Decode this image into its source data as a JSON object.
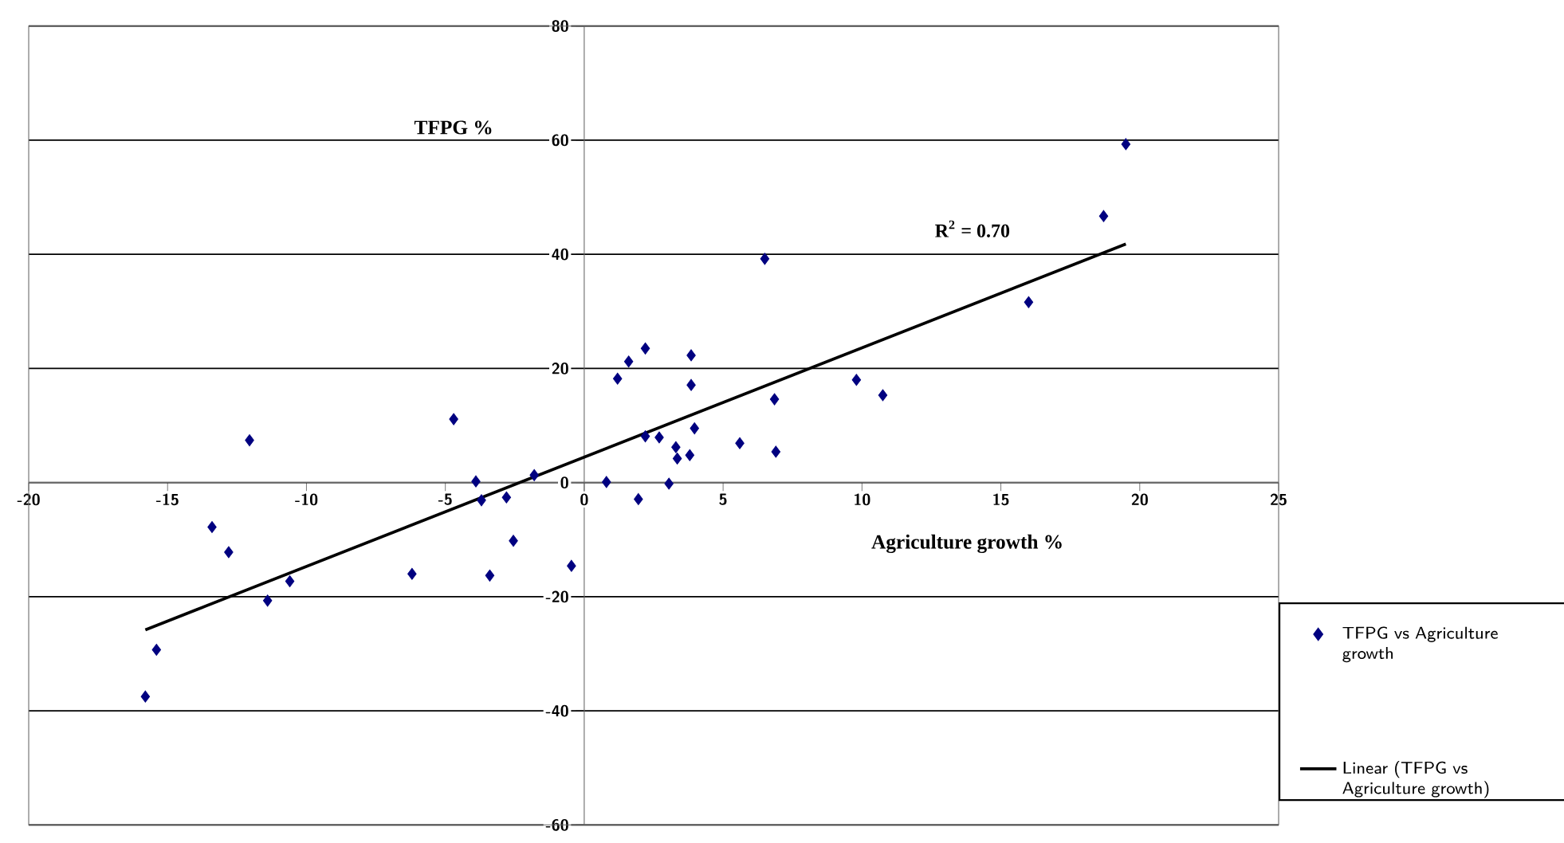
{
  "chart_data": {
    "type": "scatter",
    "xlabel": "Agriculture growth %",
    "ylabel": "TFPG %",
    "xlim": [
      -20,
      25
    ],
    "xticks": [
      -20,
      -15,
      -10,
      -5,
      0,
      5,
      10,
      15,
      20,
      25
    ],
    "ylim": [
      -60,
      80
    ],
    "yticks": [
      -60,
      -40,
      -20,
      0,
      20,
      40,
      60,
      80
    ],
    "grid": "y",
    "legend": "right",
    "annotations": [
      "R$^{2}$ = 0.70"
    ],
    "series": [
      {
        "name": "TFPG vs Agriculture growth",
        "marker": "diamond",
        "color": "#000080",
        "x": [
          -15.8,
          -15.4,
          -13.4,
          -12.8,
          -12.05,
          -11.4,
          -10.6,
          -6.2,
          -4.7,
          -3.9,
          -3.7,
          -2.8,
          -3.4,
          -2.55,
          -1.8,
          -0.46,
          0.8,
          1.95,
          3.05,
          19.5,
          18.7,
          16.0,
          6.5,
          1.2,
          1.6,
          2.2,
          3.85,
          3.85,
          9.8,
          10.75,
          6.85,
          2.2,
          2.7,
          3.97,
          5.6,
          3.3,
          6.9,
          3.35,
          3.8
        ],
        "values": [
          -37.5,
          -29.3,
          -7.8,
          -12.2,
          7.4,
          -20.7,
          -17.3,
          -16.0,
          11.1,
          0.2,
          -3.1,
          -2.6,
          -16.3,
          -10.2,
          1.3,
          -14.6,
          0.1,
          -2.9,
          -0.2,
          59.3,
          46.7,
          31.6,
          39.2,
          18.2,
          21.2,
          23.5,
          22.3,
          17.1,
          18.0,
          15.3,
          14.6,
          8.1,
          7.9,
          9.5,
          6.9,
          6.2,
          5.4,
          4.2,
          4.8
        ]
      },
      {
        "name": "Linear (TFPG vs Agriculture growth)",
        "type": "line",
        "color": "#000000",
        "x": [
          -15.8,
          19.5
        ],
        "values": [
          -25.8,
          41.8
        ]
      }
    ]
  }
}
